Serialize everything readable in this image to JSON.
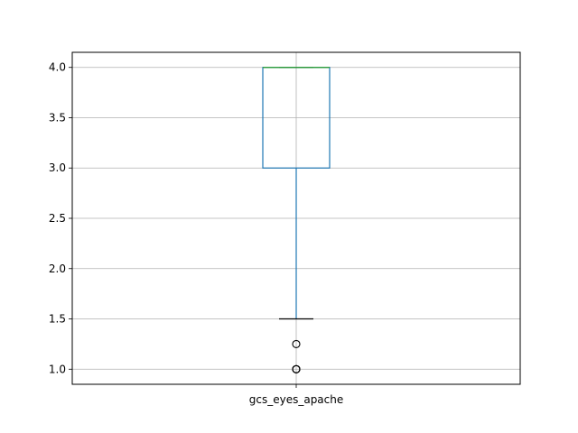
{
  "chart_data": {
    "type": "box",
    "categories": [
      "gcs_eyes_apache"
    ],
    "boxes": [
      {
        "name": "gcs_eyes_apache",
        "whisker_low": 1.5,
        "q1": 3.0,
        "median": 4.0,
        "q3": 4.0,
        "whisker_high": 4.0,
        "outliers": [
          1.25,
          1.0,
          1.0,
          1.0
        ]
      }
    ],
    "ylim": [
      0.85,
      4.15
    ],
    "yticks": [
      1.0,
      1.5,
      2.0,
      2.5,
      3.0,
      3.5,
      4.0
    ],
    "ytick_labels": [
      "1.0",
      "1.5",
      "2.0",
      "2.5",
      "3.0",
      "3.5",
      "4.0"
    ],
    "title": "",
    "xlabel": "",
    "ylabel": "",
    "grid": true,
    "colors": {
      "box": "#1f77b4",
      "median": "#2ca02c",
      "whisker_cap": "#000000",
      "grid": "#b0b0b0",
      "outlier": "#000000"
    }
  }
}
